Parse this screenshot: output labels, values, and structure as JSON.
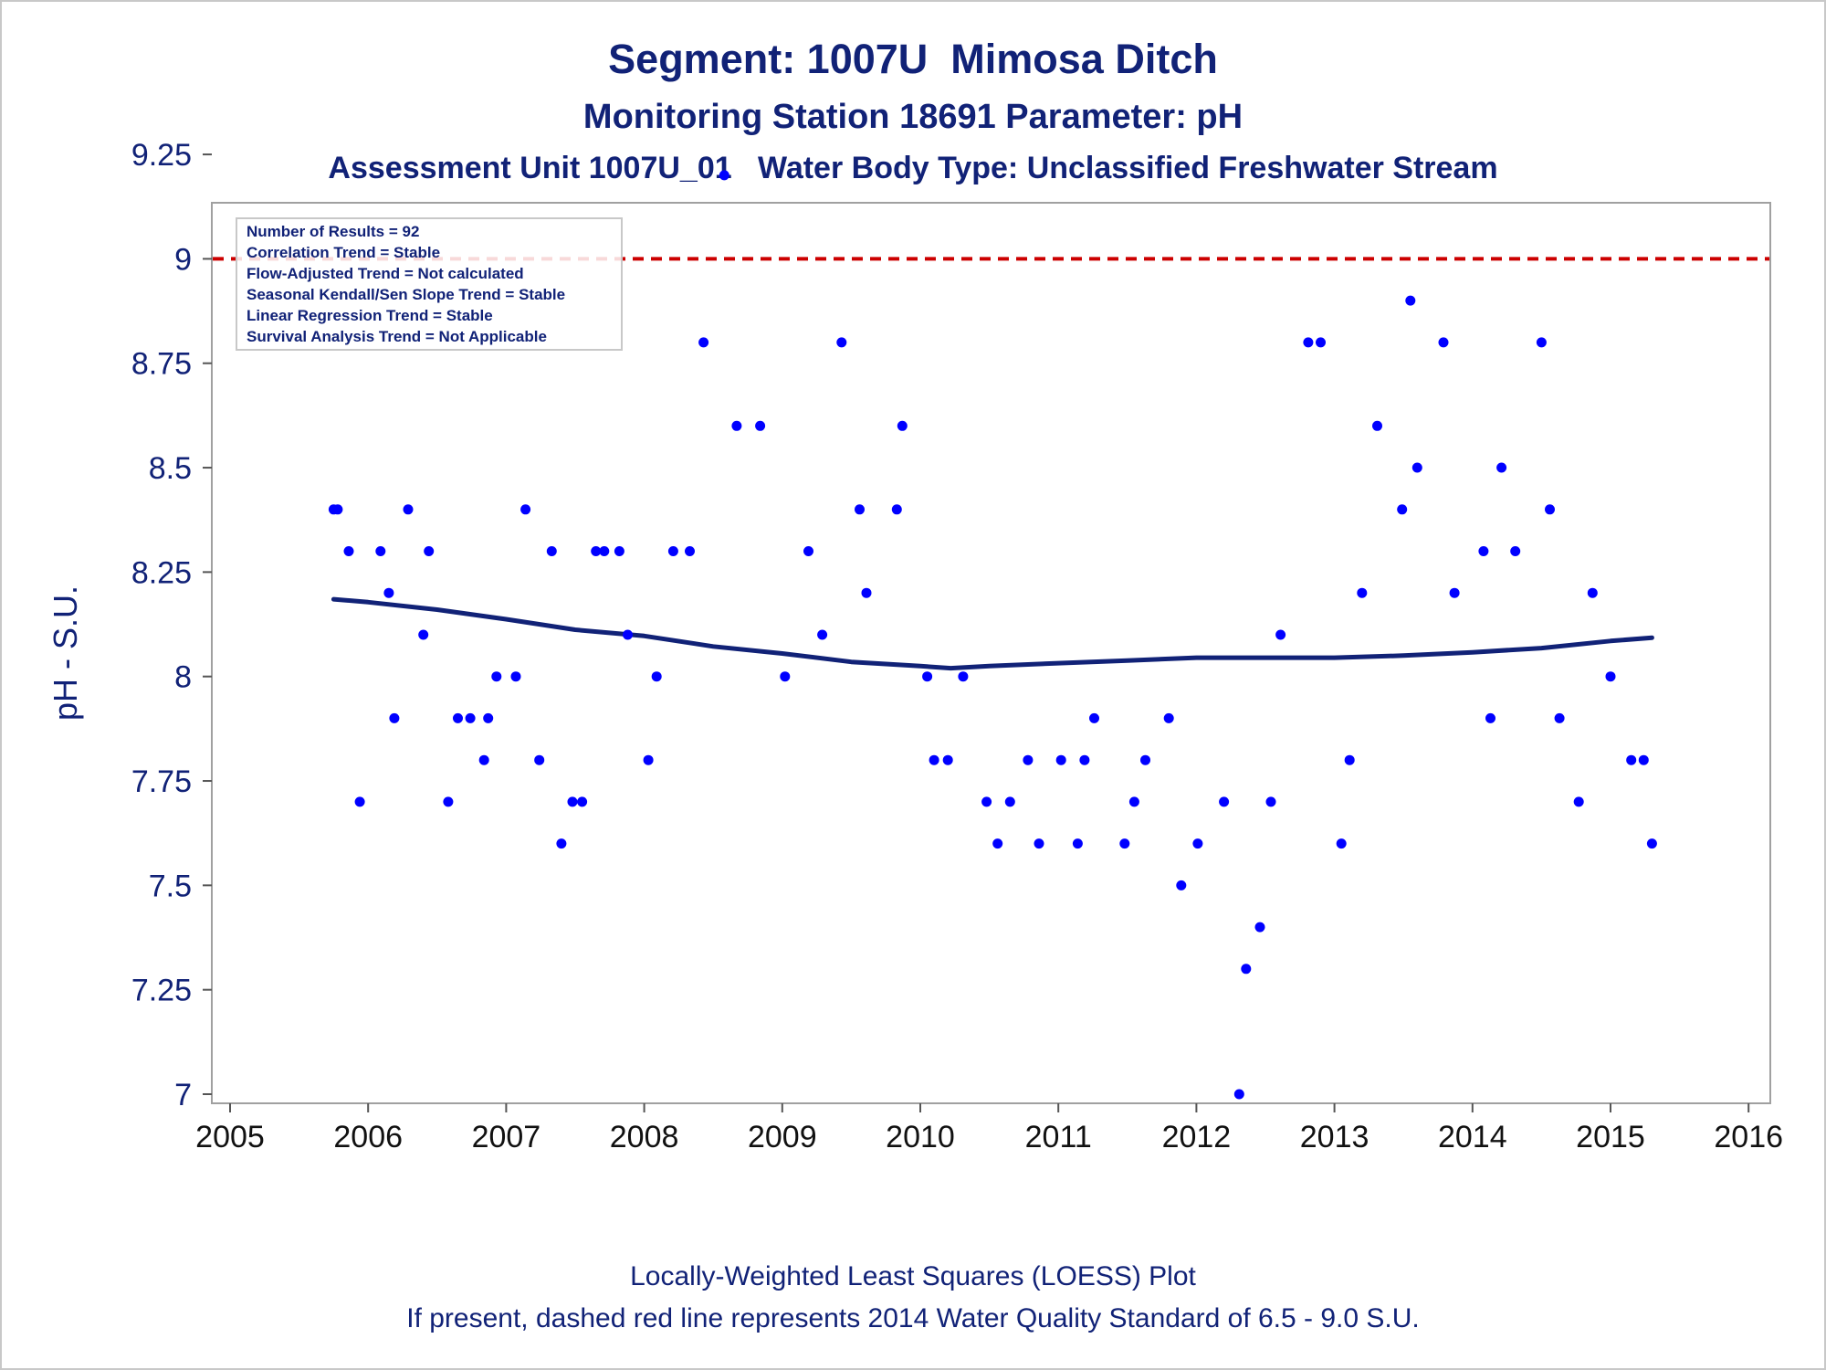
{
  "titles": {
    "line1": "Segment: 1007U  Mimosa Ditch",
    "line2": "Monitoring Station 18691 Parameter: pH",
    "line3": "Assessment Unit 1007U_01   Water Body Type: Unclassified Freshwater Stream"
  },
  "footer": {
    "line1": "Locally-Weighted Least Squares (LOESS) Plot",
    "line2": "If present, dashed red line represents 2014 Water Quality Standard of 6.5 - 9.0 S.U."
  },
  "info_box": [
    "Number of Results = 92",
    "Correlation Trend = Stable",
    "Flow-Adjusted Trend = Not calculated",
    "Seasonal Kendall/Sen Slope Trend = Stable",
    "Linear Regression Trend = Stable",
    "Survival Analysis Trend = Not Applicable"
  ],
  "chart_data": {
    "type": "scatter",
    "ylabel": "pH - S.U.",
    "xlabel": "",
    "xlim": [
      2005,
      2016
    ],
    "ylim": [
      7,
      9.25
    ],
    "x_ticks": [
      "2005",
      "2006",
      "2007",
      "2008",
      "2009",
      "2010",
      "2011",
      "2012",
      "2013",
      "2014",
      "2015",
      "2016"
    ],
    "y_ticks": [
      "7",
      "7.25",
      "7.5",
      "7.75",
      "8",
      "8.25",
      "8.5",
      "8.75",
      "9",
      "9.25"
    ],
    "reference_line": {
      "y": 9.0,
      "style": "dashed",
      "color": "#cc0000"
    },
    "point_color": "#0000ff",
    "loess_color": "#112277",
    "points": [
      [
        2005.75,
        8.4
      ],
      [
        2005.78,
        8.4
      ],
      [
        2005.86,
        8.3
      ],
      [
        2005.94,
        7.7
      ],
      [
        2006.09,
        8.3
      ],
      [
        2006.15,
        8.2
      ],
      [
        2006.19,
        7.9
      ],
      [
        2006.29,
        8.4
      ],
      [
        2006.4,
        8.1
      ],
      [
        2006.44,
        8.3
      ],
      [
        2006.58,
        7.7
      ],
      [
        2006.65,
        7.9
      ],
      [
        2006.74,
        7.9
      ],
      [
        2006.84,
        7.8
      ],
      [
        2006.87,
        7.9
      ],
      [
        2006.93,
        8.0
      ],
      [
        2007.07,
        8.0
      ],
      [
        2007.14,
        8.4
      ],
      [
        2007.24,
        7.8
      ],
      [
        2007.33,
        8.3
      ],
      [
        2007.4,
        7.6
      ],
      [
        2007.48,
        7.7
      ],
      [
        2007.55,
        7.7
      ],
      [
        2007.65,
        8.3
      ],
      [
        2007.71,
        8.3
      ],
      [
        2007.82,
        8.3
      ],
      [
        2007.88,
        8.1
      ],
      [
        2008.03,
        7.8
      ],
      [
        2008.09,
        8.0
      ],
      [
        2008.21,
        8.3
      ],
      [
        2008.33,
        8.3
      ],
      [
        2008.43,
        8.8
      ],
      [
        2008.58,
        9.2
      ],
      [
        2008.67,
        8.6
      ],
      [
        2008.84,
        8.6
      ],
      [
        2009.02,
        8.0
      ],
      [
        2009.19,
        8.3
      ],
      [
        2009.29,
        8.1
      ],
      [
        2009.43,
        8.8
      ],
      [
        2009.56,
        8.4
      ],
      [
        2009.61,
        8.2
      ],
      [
        2009.83,
        8.4
      ],
      [
        2009.87,
        8.6
      ],
      [
        2010.05,
        8.0
      ],
      [
        2010.1,
        7.8
      ],
      [
        2010.2,
        7.8
      ],
      [
        2010.31,
        8.0
      ],
      [
        2010.48,
        7.7
      ],
      [
        2010.56,
        7.6
      ],
      [
        2010.65,
        7.7
      ],
      [
        2010.78,
        7.8
      ],
      [
        2010.86,
        7.6
      ],
      [
        2011.02,
        7.8
      ],
      [
        2011.14,
        7.6
      ],
      [
        2011.19,
        7.8
      ],
      [
        2011.26,
        7.9
      ],
      [
        2011.48,
        7.6
      ],
      [
        2011.55,
        7.7
      ],
      [
        2011.63,
        7.8
      ],
      [
        2011.8,
        7.9
      ],
      [
        2011.89,
        7.5
      ],
      [
        2012.01,
        7.6
      ],
      [
        2012.2,
        7.7
      ],
      [
        2012.31,
        7.0
      ],
      [
        2012.36,
        7.3
      ],
      [
        2012.46,
        7.4
      ],
      [
        2012.54,
        7.7
      ],
      [
        2012.61,
        8.1
      ],
      [
        2012.81,
        8.8
      ],
      [
        2012.9,
        8.8
      ],
      [
        2013.05,
        7.6
      ],
      [
        2013.11,
        7.8
      ],
      [
        2013.2,
        8.2
      ],
      [
        2013.31,
        8.6
      ],
      [
        2013.49,
        8.4
      ],
      [
        2013.55,
        8.9
      ],
      [
        2013.6,
        8.5
      ],
      [
        2013.79,
        8.8
      ],
      [
        2013.87,
        8.2
      ],
      [
        2014.08,
        8.3
      ],
      [
        2014.13,
        7.9
      ],
      [
        2014.21,
        8.5
      ],
      [
        2014.31,
        8.3
      ],
      [
        2014.5,
        8.8
      ],
      [
        2014.56,
        8.4
      ],
      [
        2014.63,
        7.9
      ],
      [
        2014.77,
        7.7
      ],
      [
        2014.87,
        8.2
      ],
      [
        2015.0,
        8.0
      ],
      [
        2015.15,
        7.8
      ],
      [
        2015.24,
        7.8
      ],
      [
        2015.3,
        7.6
      ]
    ],
    "loess": [
      [
        2005.75,
        8.185
      ],
      [
        2006.0,
        8.178
      ],
      [
        2006.5,
        8.16
      ],
      [
        2007.0,
        8.137
      ],
      [
        2007.5,
        8.112
      ],
      [
        2008.0,
        8.097
      ],
      [
        2008.5,
        8.072
      ],
      [
        2009.0,
        8.055
      ],
      [
        2009.5,
        8.035
      ],
      [
        2010.0,
        8.025
      ],
      [
        2010.22,
        8.02
      ],
      [
        2010.5,
        8.025
      ],
      [
        2011.0,
        8.032
      ],
      [
        2011.5,
        8.038
      ],
      [
        2012.0,
        8.045
      ],
      [
        2012.5,
        8.045
      ],
      [
        2013.0,
        8.045
      ],
      [
        2013.5,
        8.05
      ],
      [
        2014.0,
        8.058
      ],
      [
        2014.5,
        8.068
      ],
      [
        2015.0,
        8.085
      ],
      [
        2015.3,
        8.093
      ]
    ]
  }
}
